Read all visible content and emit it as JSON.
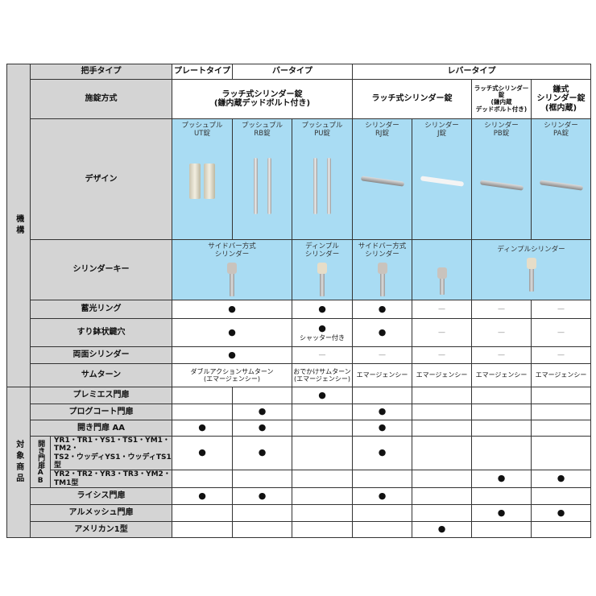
{
  "sections": {
    "mechanism": "機構",
    "target": "対象商品"
  },
  "header": {
    "handle_type": "把手タイプ",
    "plate": "プレートタイプ",
    "bar": "バータイプ",
    "lever": "レバータイプ"
  },
  "lock": {
    "label": "施錠方式",
    "a": "ラッチ式シリンダー錠\n(鎌内蔵デッドボルト付き)",
    "b": "ラッチ式シリンダー錠",
    "c": "ラッチ式シリンダー錠\n(鎌内蔵\nデッドボルト付き)",
    "d": "鎌式\nシリンダー錠\n(框内蔵)"
  },
  "design": {
    "label": "デザイン",
    "items": [
      "プッシュプル\nUT錠",
      "プッシュプル\nRB錠",
      "プッシュプル\nPU錠",
      "シリンダー\nRJ錠",
      "シリンダー\nJ錠",
      "シリンダー\nPB錠",
      "シリンダー\nPA錠"
    ]
  },
  "key": {
    "label": "シリンダーキー",
    "a": "サイドバー方式\nシリンダー",
    "b": "ディンプル\nシリンダー",
    "c": "サイドバー方式\nシリンダー",
    "d": "ディンプルシリンダー"
  },
  "features": {
    "glow": {
      "label": "蓄光リング",
      "v": [
        "●",
        "●",
        "●",
        "—",
        "—",
        "—"
      ]
    },
    "mortar": {
      "label": "すり鉢状鍵穴",
      "v": [
        "●",
        "●",
        "●",
        "—",
        "—",
        "—"
      ],
      "note": "シャッター付き"
    },
    "double": {
      "label": "両面シリンダー",
      "v": [
        "●",
        "—",
        "—",
        "—",
        "—",
        "—"
      ]
    },
    "thumb": {
      "label": "サムターン",
      "v": [
        "ダブルアクションサムターン\n(エマージェンシー)",
        "おでかけサムターン\n(エマージェンシー)",
        "エマージェンシー",
        "エマージェンシー",
        "エマージェンシー",
        "エマージェンシー"
      ]
    }
  },
  "targets": {
    "ab_group": "開き門扉AB",
    "rows": [
      {
        "label": "プレミエス門扉",
        "v": [
          "",
          "",
          "●",
          "",
          "",
          "",
          ""
        ]
      },
      {
        "label": "プログコート門扉",
        "v": [
          "",
          "●",
          "",
          "●",
          "",
          "",
          ""
        ]
      },
      {
        "label": "開き門扉 AA",
        "v": [
          "●",
          "●",
          "",
          "●",
          "",
          "",
          ""
        ]
      },
      {
        "label": "YR1・TR1・YS1・TS1・YM1・TM2・\nTS2・ウッディYS1・ウッディTS1型",
        "v": [
          "●",
          "●",
          "",
          "●",
          "",
          "",
          ""
        ]
      },
      {
        "label": "YR2・TR2・YR3・TR3・YM2・TM1型",
        "v": [
          "",
          "",
          "",
          "",
          "",
          "●",
          "●"
        ]
      },
      {
        "label": "ライシス門扉",
        "v": [
          "●",
          "●",
          "",
          "●",
          "",
          "",
          ""
        ]
      },
      {
        "label": "アルメッシュ門扉",
        "v": [
          "",
          "",
          "",
          "",
          "",
          "●",
          "●"
        ]
      },
      {
        "label": "アメリカン1型",
        "v": [
          "",
          "",
          "",
          "",
          "●",
          "",
          ""
        ]
      }
    ]
  },
  "colors": {
    "header_gray": "#d4d4d4",
    "design_blue": "#a9dcf3"
  }
}
